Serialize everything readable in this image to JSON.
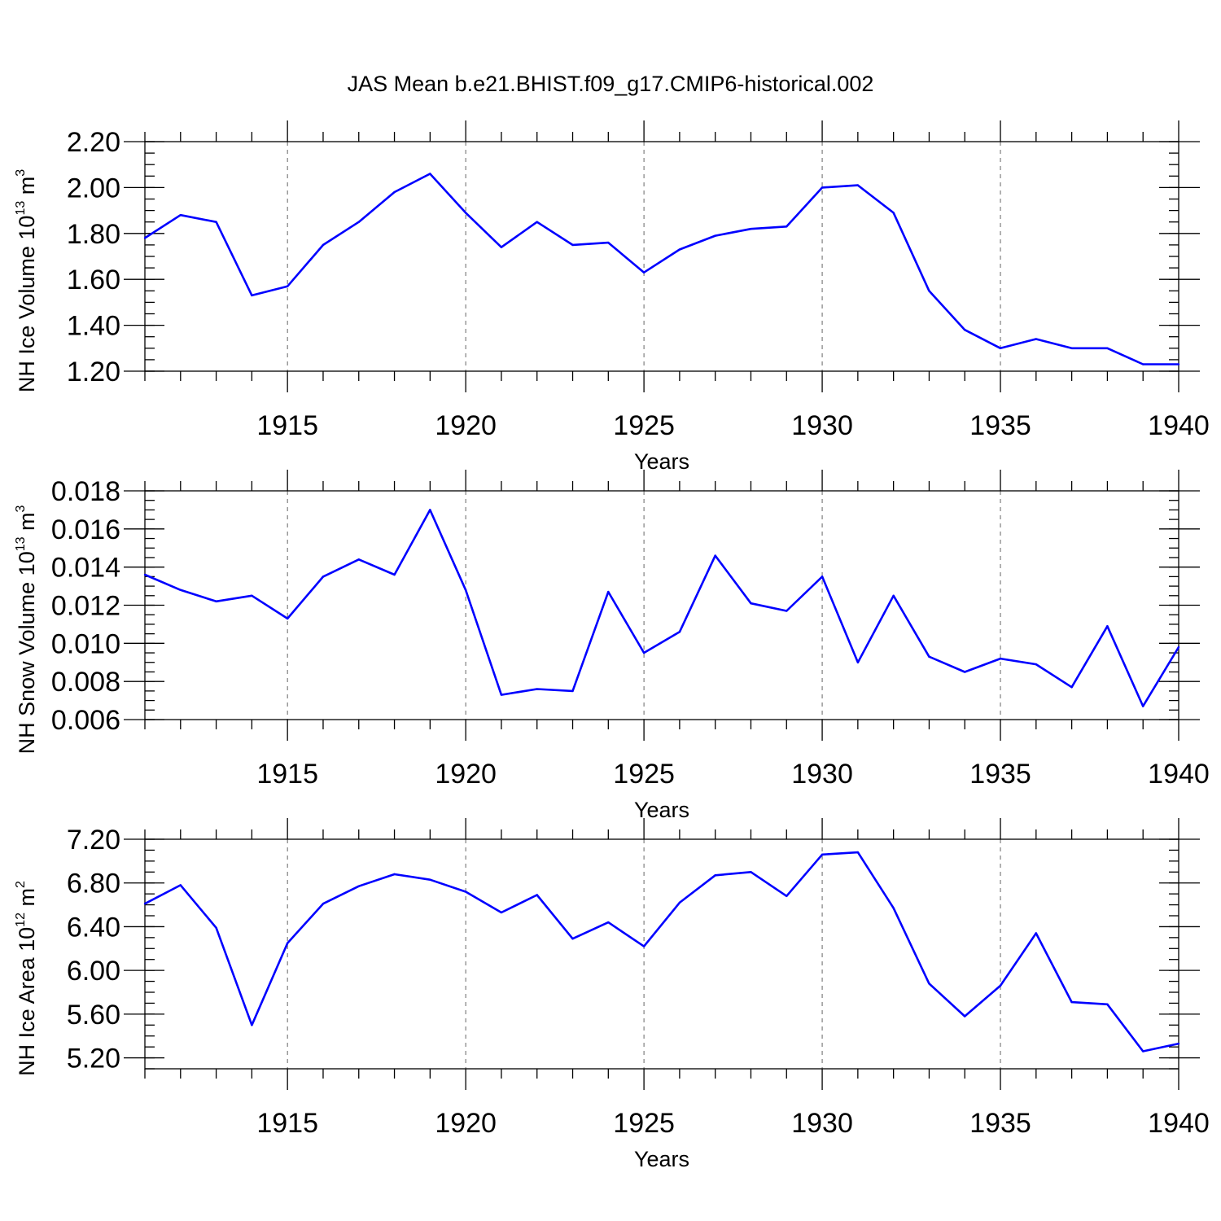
{
  "figure": {
    "title": "JAS Mean b.e21.BHIST.f09_g17.CMIP6-historical.002"
  },
  "chart_data": [
    {
      "type": "line",
      "title": "",
      "xlabel": "Years",
      "ylabel": "NH Ice Volume 10",
      "ylabel_exp": "13",
      "ylabel_unit": "m",
      "ylabel_unit_exp": "3",
      "xlim": [
        1911,
        1940
      ],
      "ylim": [
        1.2,
        2.2
      ],
      "xticks": [
        1915,
        1920,
        1925,
        1930,
        1935,
        1940
      ],
      "yticks": [
        "1.20",
        "1.40",
        "1.60",
        "1.80",
        "2.00",
        "2.20"
      ],
      "y_minor_step": 0.05,
      "grid": "vertical dashed at major x ticks",
      "line_color": "#0000ff",
      "x": [
        1911,
        1912,
        1913,
        1914,
        1915,
        1916,
        1917,
        1918,
        1919,
        1920,
        1921,
        1922,
        1923,
        1924,
        1925,
        1926,
        1927,
        1928,
        1929,
        1930,
        1931,
        1932,
        1933,
        1934,
        1935,
        1936,
        1937,
        1938,
        1939,
        1940
      ],
      "values": [
        1.78,
        1.88,
        1.85,
        1.53,
        1.57,
        1.75,
        1.85,
        1.98,
        2.06,
        1.89,
        1.74,
        1.85,
        1.75,
        1.76,
        1.63,
        1.73,
        1.79,
        1.82,
        1.83,
        2.0,
        2.01,
        1.89,
        1.55,
        1.38,
        1.3,
        1.34,
        1.3,
        1.3,
        1.23,
        1.23
      ]
    },
    {
      "type": "line",
      "title": "",
      "xlabel": "Years",
      "ylabel": "NH Snow Volume 10",
      "ylabel_exp": "13",
      "ylabel_unit": "m",
      "ylabel_unit_exp": "3",
      "xlim": [
        1911,
        1940
      ],
      "ylim": [
        0.006,
        0.018
      ],
      "xticks": [
        1915,
        1920,
        1925,
        1930,
        1935,
        1940
      ],
      "yticks": [
        "0.006",
        "0.008",
        "0.010",
        "0.012",
        "0.014",
        "0.016",
        "0.018"
      ],
      "y_minor_step": 0.0005,
      "grid": "vertical dashed at major x ticks",
      "line_color": "#0000ff",
      "x": [
        1911,
        1912,
        1913,
        1914,
        1915,
        1916,
        1917,
        1918,
        1919,
        1920,
        1921,
        1922,
        1923,
        1924,
        1925,
        1926,
        1927,
        1928,
        1929,
        1930,
        1931,
        1932,
        1933,
        1934,
        1935,
        1936,
        1937,
        1938,
        1939,
        1940
      ],
      "values": [
        0.0136,
        0.0128,
        0.0122,
        0.0125,
        0.0113,
        0.0135,
        0.0144,
        0.0136,
        0.017,
        0.0128,
        0.0073,
        0.0076,
        0.0075,
        0.0127,
        0.0095,
        0.0106,
        0.0146,
        0.0121,
        0.0117,
        0.0135,
        0.009,
        0.0125,
        0.0093,
        0.0085,
        0.0092,
        0.0089,
        0.0077,
        0.0109,
        0.0067,
        0.0098
      ]
    },
    {
      "type": "line",
      "title": "",
      "xlabel": "Years",
      "ylabel": "NH Ice Area 10",
      "ylabel_exp": "12",
      "ylabel_unit": "m",
      "ylabel_unit_exp": "2",
      "xlim": [
        1911,
        1940
      ],
      "ylim": [
        5.1,
        7.2
      ],
      "xticks": [
        1915,
        1920,
        1925,
        1930,
        1935,
        1940
      ],
      "yticks": [
        "5.20",
        "5.60",
        "6.00",
        "6.40",
        "6.80",
        "7.20"
      ],
      "y_minor_step": 0.1,
      "grid": "vertical dashed at major x ticks",
      "line_color": "#0000ff",
      "x": [
        1911,
        1912,
        1913,
        1914,
        1915,
        1916,
        1917,
        1918,
        1919,
        1920,
        1921,
        1922,
        1923,
        1924,
        1925,
        1926,
        1927,
        1928,
        1929,
        1930,
        1931,
        1932,
        1933,
        1934,
        1935,
        1936,
        1937,
        1938,
        1939,
        1940
      ],
      "values": [
        6.61,
        6.78,
        6.39,
        5.5,
        6.25,
        6.61,
        6.77,
        6.88,
        6.83,
        6.72,
        6.53,
        6.69,
        6.29,
        6.44,
        6.22,
        6.62,
        6.87,
        6.9,
        6.68,
        7.06,
        7.08,
        6.57,
        5.88,
        5.58,
        5.86,
        6.34,
        5.71,
        5.69,
        5.26,
        5.33
      ]
    }
  ]
}
